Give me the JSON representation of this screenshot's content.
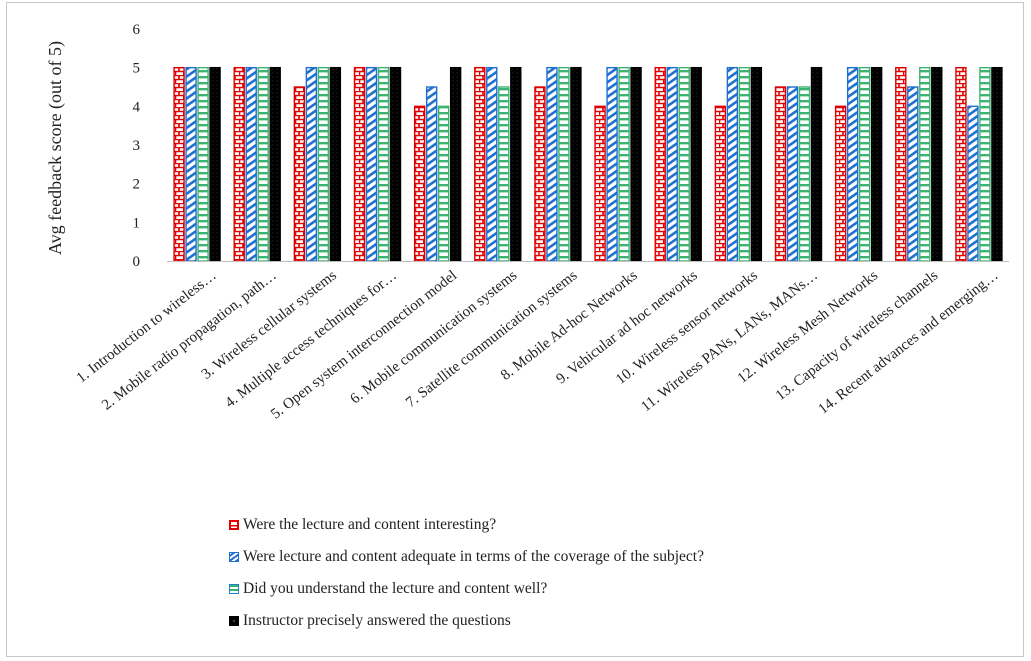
{
  "chart_data": {
    "type": "bar",
    "ylabel": "Avg feedback score (out of 5)",
    "xlabel": "",
    "title": "",
    "ylim": [
      0,
      6
    ],
    "yticks": [
      0,
      1,
      2,
      3,
      4,
      5,
      6
    ],
    "grid": false,
    "legend_position": "bottom",
    "categories": [
      "1. Introduction to wireless…",
      "2. Mobile radio propagation, path…",
      "3. Wireless cellular systems",
      "4. Multiple access techniques for…",
      "5. Open system interconnection model",
      "6. Mobile communication systems",
      "7. Satellite communication systems",
      "8. Mobile Ad-hoc Networks",
      "9. Vehicular ad hoc networks",
      "10. Wireless sensor networks",
      "11. Wireless PANs, LANs, MANs…",
      "12. Wireless Mesh Networks",
      "13. Capacity of wireless channels",
      "14. Recent advances and emerging…"
    ],
    "series": [
      {
        "name": "Were the lecture and content interesting?",
        "color": "#e00000",
        "pattern": "brick",
        "values": [
          5,
          5,
          4.5,
          5,
          4,
          5,
          4.5,
          4,
          5,
          4,
          4.5,
          4,
          5,
          5
        ]
      },
      {
        "name": "Were lecture and content adequate in terms of the coverage of the subject?",
        "color": "#1f6fd0",
        "pattern": "diagonal",
        "values": [
          5,
          5,
          5,
          5,
          4.5,
          5,
          5,
          5,
          5,
          5,
          4.5,
          5,
          4.5,
          4
        ]
      },
      {
        "name": "Did you understand the lecture and content well?",
        "color": "#3cb371",
        "pattern": "horizontal",
        "values": [
          5,
          5,
          5,
          5,
          4,
          4.5,
          5,
          5,
          5,
          5,
          4.5,
          5,
          5,
          5
        ]
      },
      {
        "name": "Instructor precisely answered the questions",
        "color": "#000000",
        "pattern": "dotted",
        "values": [
          5,
          5,
          5,
          5,
          5,
          5,
          5,
          5,
          5,
          5,
          5,
          5,
          5,
          5
        ]
      }
    ]
  }
}
